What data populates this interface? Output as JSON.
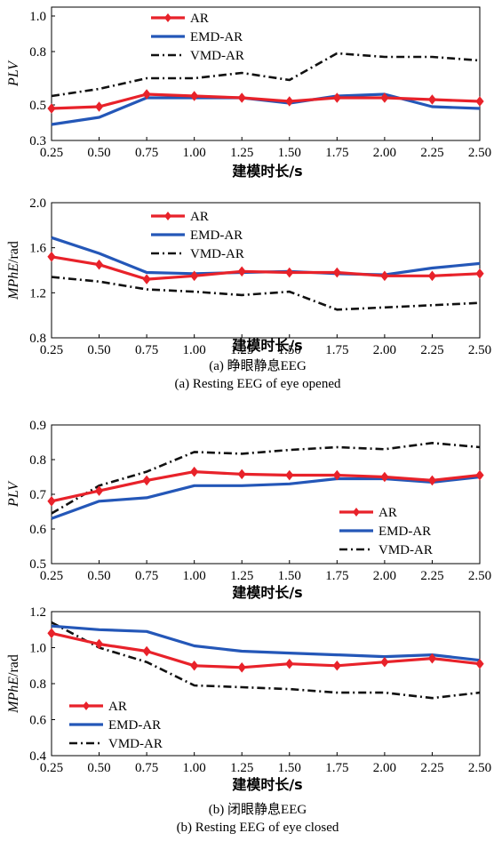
{
  "colors": {
    "AR": "#e8222a",
    "EMD-AR": "#2457b8",
    "VMD-AR": "#111111"
  },
  "captions": {
    "a_cn": "(a) 睁眼静息EEG",
    "a_en": "(a) Resting EEG of eye opened",
    "b_cn": "(b) 闭眼静息EEG",
    "b_en": "(b) Resting EEG of eye closed"
  },
  "chart_data": [
    {
      "type": "line",
      "xlabel": "建模时长/s",
      "ylabel_main": "PLV",
      "ylabel_unit": "",
      "ylim": [
        0.3,
        1.05
      ],
      "yticks": [
        "0.3",
        "0.5",
        "0.8",
        "1.0"
      ],
      "ytick_values": [
        0.3,
        0.5,
        0.8,
        1.0
      ],
      "x": [
        0.25,
        0.5,
        0.75,
        1.0,
        1.25,
        1.5,
        1.75,
        2.0,
        2.25,
        2.5
      ],
      "xticks": [
        "0.25",
        "0.50",
        "0.75",
        "1.00",
        "1.25",
        "1.50",
        "1.75",
        "2.00",
        "2.25",
        "2.50"
      ],
      "legend": "top-center",
      "series": [
        {
          "name": "AR",
          "values": [
            0.48,
            0.49,
            0.56,
            0.55,
            0.54,
            0.52,
            0.54,
            0.54,
            0.53,
            0.52
          ]
        },
        {
          "name": "EMD-AR",
          "values": [
            0.39,
            0.43,
            0.54,
            0.54,
            0.54,
            0.51,
            0.55,
            0.56,
            0.49,
            0.48
          ]
        },
        {
          "name": "VMD-AR",
          "values": [
            0.55,
            0.59,
            0.65,
            0.65,
            0.68,
            0.64,
            0.79,
            0.77,
            0.77,
            0.75
          ]
        }
      ]
    },
    {
      "type": "line",
      "xlabel": "建模时长/s",
      "ylabel_main": "MPhE",
      "ylabel_unit": "/rad",
      "ylim": [
        0.8,
        2.0
      ],
      "yticks": [
        "0.8",
        "1.2",
        "1.6",
        "2.0"
      ],
      "ytick_values": [
        0.8,
        1.2,
        1.6,
        2.0
      ],
      "x": [
        0.25,
        0.5,
        0.75,
        1.0,
        1.25,
        1.5,
        1.75,
        2.0,
        2.25,
        2.5
      ],
      "xticks": [
        "0.25",
        "0.50",
        "0.75",
        "1.00",
        "1.25",
        "1.50",
        "1.75",
        "2.00",
        "2.25",
        "2.50"
      ],
      "legend": "top-center",
      "series": [
        {
          "name": "AR",
          "values": [
            1.52,
            1.45,
            1.32,
            1.35,
            1.39,
            1.38,
            1.38,
            1.35,
            1.35,
            1.37
          ]
        },
        {
          "name": "EMD-AR",
          "values": [
            1.69,
            1.55,
            1.38,
            1.37,
            1.38,
            1.39,
            1.37,
            1.36,
            1.42,
            1.46
          ]
        },
        {
          "name": "VMD-AR",
          "values": [
            1.34,
            1.3,
            1.23,
            1.21,
            1.18,
            1.21,
            1.05,
            1.07,
            1.09,
            1.11
          ]
        }
      ]
    },
    {
      "type": "line",
      "xlabel": "建模时长/s",
      "ylabel_main": "PLV",
      "ylabel_unit": "",
      "ylim": [
        0.5,
        0.9
      ],
      "yticks": [
        "0.5",
        "0.6",
        "0.7",
        "0.8",
        "0.9"
      ],
      "ytick_values": [
        0.5,
        0.6,
        0.7,
        0.8,
        0.9
      ],
      "x": [
        0.25,
        0.5,
        0.75,
        1.0,
        1.25,
        1.5,
        1.75,
        2.0,
        2.25,
        2.5
      ],
      "xticks": [
        "0.25",
        "0.50",
        "0.75",
        "1.00",
        "1.25",
        "1.50",
        "1.75",
        "2.00",
        "2.25",
        "2.50"
      ],
      "legend": "bottom-right",
      "series": [
        {
          "name": "AR",
          "values": [
            0.68,
            0.71,
            0.74,
            0.765,
            0.758,
            0.755,
            0.755,
            0.75,
            0.74,
            0.755
          ]
        },
        {
          "name": "EMD-AR",
          "values": [
            0.63,
            0.68,
            0.69,
            0.725,
            0.725,
            0.73,
            0.745,
            0.745,
            0.735,
            0.75
          ]
        },
        {
          "name": "VMD-AR",
          "values": [
            0.645,
            0.725,
            0.765,
            0.822,
            0.817,
            0.828,
            0.836,
            0.83,
            0.848,
            0.836
          ]
        }
      ]
    },
    {
      "type": "line",
      "xlabel": "建模时长/s",
      "ylabel_main": "MPhE",
      "ylabel_unit": "/rad",
      "ylim": [
        0.4,
        1.2
      ],
      "yticks": [
        "0.4",
        "0.6",
        "0.8",
        "1.0",
        "1.2"
      ],
      "ytick_values": [
        0.4,
        0.6,
        0.8,
        1.0,
        1.2
      ],
      "x": [
        0.25,
        0.5,
        0.75,
        1.0,
        1.25,
        1.5,
        1.75,
        2.0,
        2.25,
        2.5
      ],
      "xticks": [
        "0.25",
        "0.50",
        "0.75",
        "1.00",
        "1.25",
        "1.50",
        "1.75",
        "2.00",
        "2.25",
        "2.50"
      ],
      "legend": "bottom-left",
      "series": [
        {
          "name": "AR",
          "values": [
            1.08,
            1.02,
            0.98,
            0.9,
            0.89,
            0.91,
            0.9,
            0.92,
            0.94,
            0.91
          ]
        },
        {
          "name": "EMD-AR",
          "values": [
            1.12,
            1.1,
            1.09,
            1.01,
            0.98,
            0.97,
            0.96,
            0.95,
            0.96,
            0.93
          ]
        },
        {
          "name": "VMD-AR",
          "values": [
            1.14,
            1.0,
            0.92,
            0.79,
            0.78,
            0.77,
            0.75,
            0.75,
            0.72,
            0.75
          ]
        }
      ]
    }
  ]
}
